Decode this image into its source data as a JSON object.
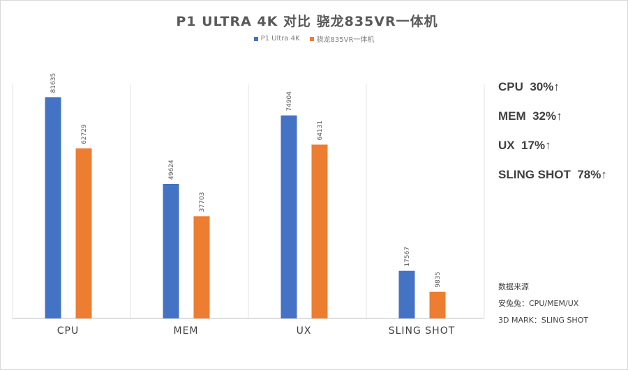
{
  "chart_data": {
    "type": "bar",
    "title": "P1 ULTRA 4K 对比 骁龙835VR一体机",
    "categories": [
      "CPU",
      "MEM",
      "UX",
      "SLING SHOT"
    ],
    "series": [
      {
        "name": "P1 Ultra 4K",
        "values": [
          81635,
          49624,
          74904,
          17567
        ],
        "color": "#4472c4"
      },
      {
        "name": "骁龙835VR一体机",
        "values": [
          62729,
          37703,
          64131,
          9835
        ],
        "color": "#ed7d31"
      }
    ],
    "ylim": [
      0,
      100000
    ],
    "grid": false,
    "legend_position": "top"
  },
  "side_stats": [
    "CPU  30%↑",
    "MEM  32%↑",
    "UX  17%↑",
    "SLING SHOT  78%↑"
  ],
  "source": {
    "heading": "数据来源",
    "lines": [
      "安兔兔：CPU/MEM/UX",
      "3D MARK：SLING SHOT"
    ]
  }
}
